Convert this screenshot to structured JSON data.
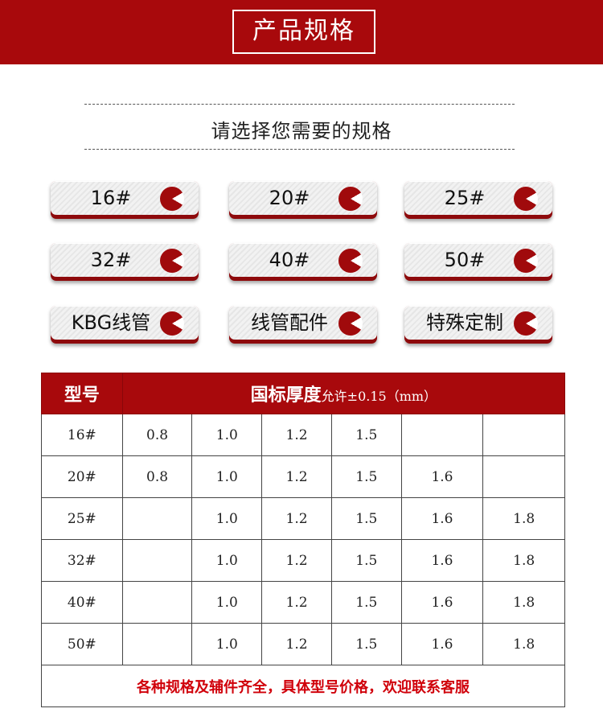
{
  "banner": {
    "title": "产品规格"
  },
  "subtitle": "请选择您需要的规格",
  "buttons": [
    {
      "label": "16#"
    },
    {
      "label": "20#"
    },
    {
      "label": "25#"
    },
    {
      "label": "32#"
    },
    {
      "label": "40#"
    },
    {
      "label": "50#"
    },
    {
      "label": "KBG线管"
    },
    {
      "label": "线管配件"
    },
    {
      "label": "特殊定制"
    }
  ],
  "table": {
    "header_model": "型号",
    "header_thickness": "国标厚度",
    "header_tolerance": "允许±0.15（mm）",
    "rows": [
      {
        "model": "16#",
        "values": [
          "0.8",
          "1.0",
          "1.2",
          "1.5",
          "",
          ""
        ]
      },
      {
        "model": "20#",
        "values": [
          "0.8",
          "1.0",
          "1.2",
          "1.5",
          "1.6",
          ""
        ]
      },
      {
        "model": "25#",
        "values": [
          "",
          "1.0",
          "1.2",
          "1.5",
          "1.6",
          "1.8"
        ]
      },
      {
        "model": "32#",
        "values": [
          "",
          "1.0",
          "1.2",
          "1.5",
          "1.6",
          "1.8"
        ]
      },
      {
        "model": "40#",
        "values": [
          "",
          "1.0",
          "1.2",
          "1.5",
          "1.6",
          "1.8"
        ]
      },
      {
        "model": "50#",
        "values": [
          "",
          "1.0",
          "1.2",
          "1.5",
          "1.6",
          "1.8"
        ]
      }
    ],
    "footer": "各种规格及辅件齐全，具体型号价格，欢迎联系客服"
  },
  "colors": {
    "brand": "#a8090c",
    "footer_text": "#d0000a"
  }
}
